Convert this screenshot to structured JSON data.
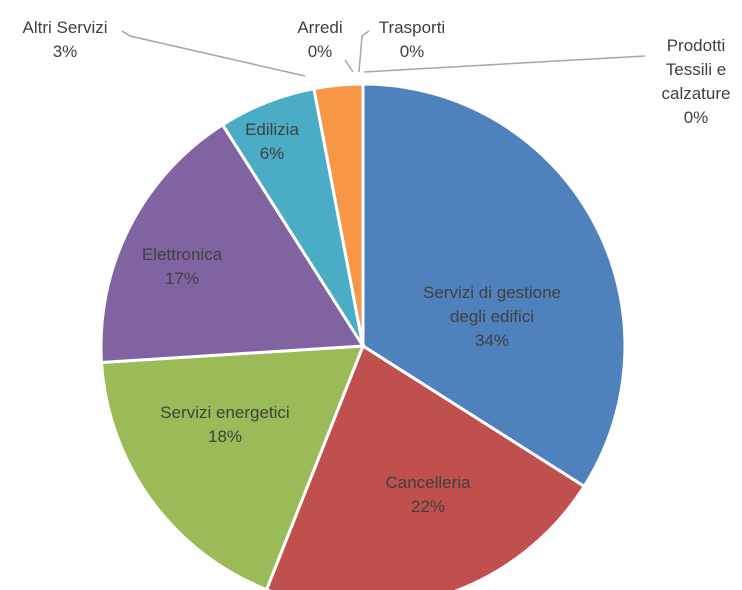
{
  "chart_data": {
    "type": "pie",
    "categories": [
      "Servizi di gestione degli edifici",
      "Cancelleria",
      "Servizi energetici",
      "Elettronica",
      "Edilizia",
      "Altri Servizi",
      "Arredi",
      "Trasporti",
      "Prodotti Tessili e calzature"
    ],
    "values": [
      34,
      22,
      18,
      17,
      6,
      3,
      0,
      0,
      0
    ],
    "value_labels": [
      "34%",
      "22%",
      "18%",
      "17%",
      "6%",
      "3%",
      "0%",
      "0%",
      "0%"
    ],
    "colors": [
      "#4f81bd",
      "#c0504d",
      "#9bbb59",
      "#8064a2",
      "#4bacc6",
      "#f79646",
      "#2c4d75",
      "#772c2a",
      "#5f7530"
    ]
  }
}
